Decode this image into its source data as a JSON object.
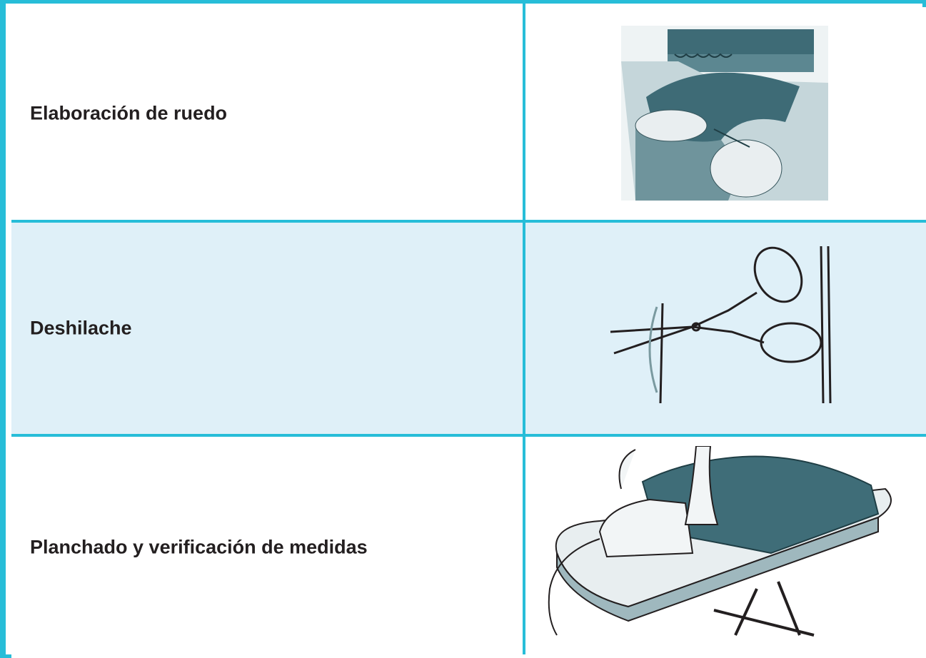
{
  "table": {
    "rows": [
      [
        "Elaboración de ruedo"
      ],
      [
        "Deshilache"
      ],
      [
        "Planchado y verificación de medidas"
      ]
    ]
  }
}
